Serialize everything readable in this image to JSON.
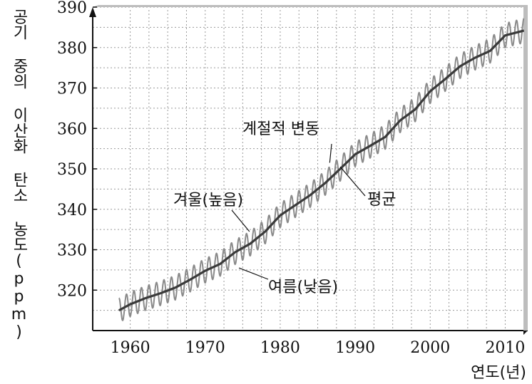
{
  "chart_data": {
    "type": "line",
    "title": "",
    "ylabel": "공기 중의 이산화 탄소 농도(ppm)",
    "xlabel": "연도(년)",
    "xlim": [
      1955,
      2013
    ],
    "ylim": [
      310,
      390
    ],
    "xticks": [
      "1960",
      "1970",
      "1980",
      "1990",
      "2000",
      "2010"
    ],
    "yticks": [
      "390",
      "380",
      "370",
      "360",
      "350",
      "340",
      "330",
      "320"
    ],
    "grid": true,
    "annotations": [
      "계절적 변동",
      "평균",
      "겨울(높음)",
      "여름(낮음)"
    ],
    "series": [
      {
        "name": "평균",
        "x": [
          1958.5,
          1960,
          1962,
          1964,
          1966,
          1968,
          1970,
          1972,
          1974,
          1976,
          1978,
          1980,
          1982,
          1984,
          1986,
          1988,
          1990,
          1992,
          1994,
          1996,
          1998,
          2000,
          2002,
          2004,
          2006,
          2008,
          2010,
          2012.5
        ],
        "values": [
          315,
          316.5,
          318,
          319.2,
          320.6,
          322.6,
          324.8,
          326.5,
          329.4,
          331.5,
          334.5,
          338.5,
          341,
          343.5,
          346.5,
          350,
          353.6,
          355.7,
          357.9,
          362,
          364.7,
          369.2,
          372.2,
          375.4,
          377.5,
          379.2,
          383,
          384.2
        ]
      },
      {
        "name": "계절적 변동",
        "amplitude": 3,
        "period_years": 1
      }
    ]
  }
}
